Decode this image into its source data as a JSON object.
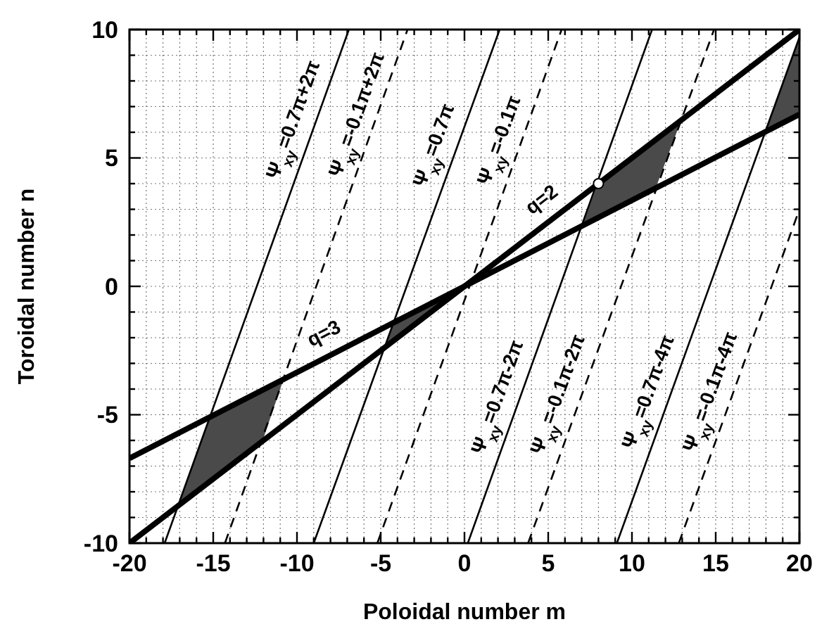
{
  "chart_data": {
    "type": "line",
    "xlabel": "Poloidal number m",
    "ylabel": "Toroidal number n",
    "xlim": [
      -20,
      20
    ],
    "ylim": [
      -10,
      10
    ],
    "grid": true,
    "xticks": [
      -20,
      {
        "value": -19,
        "label": null
      },
      {
        "value": -18,
        "label": null
      },
      {
        "value": -17,
        "label": null
      },
      {
        "value": -16,
        "label": null
      },
      -15,
      {
        "value": -14,
        "label": null
      },
      {
        "value": -13,
        "label": null
      },
      {
        "value": -12,
        "label": null
      },
      {
        "value": -11,
        "label": null
      },
      -10,
      {
        "value": -9,
        "label": null
      },
      {
        "value": -8,
        "label": null
      },
      {
        "value": -7,
        "label": null
      },
      {
        "value": -6,
        "label": null
      },
      -5,
      {
        "value": -4,
        "label": null
      },
      {
        "value": -3,
        "label": null
      },
      {
        "value": -2,
        "label": null
      },
      {
        "value": -1,
        "label": null
      },
      0,
      {
        "value": 1,
        "label": null
      },
      {
        "value": 2,
        "label": null
      },
      {
        "value": 3,
        "label": null
      },
      {
        "value": 4,
        "label": null
      },
      5,
      {
        "value": 6,
        "label": null
      },
      {
        "value": 7,
        "label": null
      },
      {
        "value": 8,
        "label": null
      },
      {
        "value": 9,
        "label": null
      },
      10,
      {
        "value": 11,
        "label": null
      },
      {
        "value": 12,
        "label": null
      },
      {
        "value": 13,
        "label": null
      },
      {
        "value": 14,
        "label": null
      },
      15,
      {
        "value": 16,
        "label": null
      },
      {
        "value": 17,
        "label": null
      },
      {
        "value": 18,
        "label": null
      },
      {
        "value": 19,
        "label": null
      },
      20
    ],
    "yticks": [
      -10,
      {
        "value": -9,
        "label": null
      },
      {
        "value": -8,
        "label": null
      },
      {
        "value": -7,
        "label": null
      },
      {
        "value": -6,
        "label": null
      },
      -5,
      {
        "value": -4,
        "label": null
      },
      {
        "value": -3,
        "label": null
      },
      {
        "value": -2,
        "label": null
      },
      {
        "value": -1,
        "label": null
      },
      0,
      {
        "value": 1,
        "label": null
      },
      {
        "value": 2,
        "label": null
      },
      {
        "value": 3,
        "label": null
      },
      {
        "value": 4,
        "label": null
      },
      5,
      {
        "value": 6,
        "label": null
      },
      {
        "value": 7,
        "label": null
      },
      {
        "value": 8,
        "label": null
      },
      {
        "value": 9,
        "label": null
      },
      10
    ],
    "series": [
      {
        "type": "area",
        "color": "#4a4a4a",
        "x": [
          -17.1,
          -15.2,
          -10.8,
          -12.1
        ],
        "values": [
          -8.6,
          -5.1,
          -3.6,
          -6.1
        ]
      },
      {
        "type": "area",
        "color": "#4a4a4a",
        "x": [
          -4.8,
          -4.2,
          0
        ],
        "values": [
          -2.4,
          -1.4,
          0
        ]
      },
      {
        "type": "area",
        "color": "#4a4a4a",
        "x": [
          7.0,
          7.9,
          12.9,
          11.4
        ],
        "values": [
          2.3,
          3.9,
          6.4,
          3.8
        ]
      },
      {
        "type": "area",
        "color": "#4a4a4a",
        "x": [
          17.9,
          20,
          20
        ],
        "values": [
          6.0,
          9.7,
          6.7
        ]
      },
      {
        "color": "#000000",
        "x": [
          -20,
          20
        ],
        "values": [
          -10,
          10
        ]
      },
      {
        "color": "#000000",
        "x": [
          -20,
          20
        ],
        "values": [
          -6.7,
          6.7
        ]
      },
      {
        "color": "#000000",
        "line_style": "solid",
        "x": [
          -17.9,
          -6.9
        ],
        "values": [
          -10,
          10
        ]
      },
      {
        "color": "#000000",
        "line_style": "solid",
        "x": [
          -9.0,
          2.1
        ],
        "values": [
          -10,
          10
        ]
      },
      {
        "color": "#000000",
        "line_style": "solid",
        "x": [
          0.2,
          11.2
        ],
        "values": [
          -10,
          10
        ]
      },
      {
        "color": "#000000",
        "line_style": "solid",
        "x": [
          9.1,
          20
        ],
        "values": [
          -10,
          9.7
        ]
      },
      {
        "color": "#000000",
        "line_style": "dashed",
        "x": [
          -14.3,
          -3.4
        ],
        "values": [
          -10,
          10
        ]
      },
      {
        "color": "#000000",
        "line_style": "dashed",
        "x": [
          -5.2,
          5.8
        ],
        "values": [
          -10,
          10
        ]
      },
      {
        "color": "#000000",
        "line_style": "dashed",
        "x": [
          3.8,
          14.9
        ],
        "values": [
          -10,
          10
        ]
      },
      {
        "color": "#000000",
        "line_style": "dashed",
        "x": [
          12.8,
          20
        ],
        "values": [
          -10,
          3
        ]
      },
      {
        "type": "scatter",
        "color": "#ffffff",
        "marker": "circle",
        "x": [
          8
        ],
        "values": [
          4
        ]
      }
    ],
    "annotations": [
      {
        "text": "Ψ$_{xy}$=0.7π+2π",
        "x": -9.0,
        "y": 6.2
      },
      {
        "text": "Ψ$_{xy}$=-0.1π+2π",
        "x": -5.2,
        "y": 6.4
      },
      {
        "text": "Ψ$_{xy}$=0.7π",
        "x": -0.6,
        "y": 5.2
      },
      {
        "text": "Ψ$_{xy}$=-0.1π",
        "x": 3.3,
        "y": 5.4
      },
      {
        "text": "q=2",
        "x": 5.4,
        "y": 2.7
      },
      {
        "text": "q=3",
        "x": -7.8,
        "y": -2.6
      },
      {
        "text": "Ψ$_{xy}$=0.7π-2π",
        "x": 3.2,
        "y": -4.6
      },
      {
        "text": "Ψ$_{xy}$=-0.1π-2π",
        "x": 6.8,
        "y": -4.5
      },
      {
        "text": "Ψ$_{xy}$=0.7π-4π",
        "x": 12.2,
        "y": -4.4
      },
      {
        "text": "Ψ$_{xy}$=-0.1π-4π",
        "x": 15.9,
        "y": -4.4
      }
    ]
  }
}
